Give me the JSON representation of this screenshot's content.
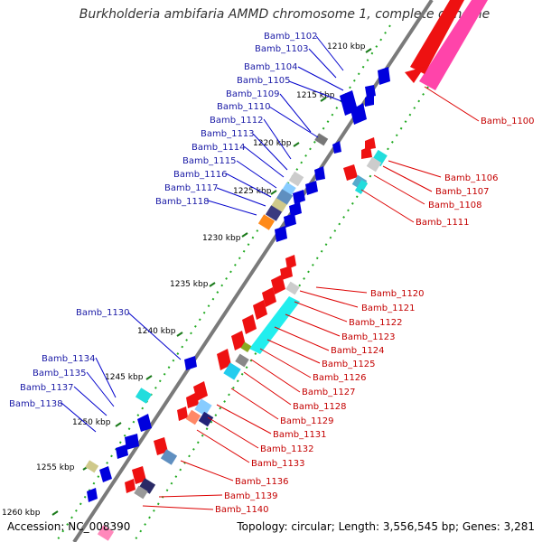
{
  "title": "Burkholderia ambifaria AMMD chromosome 1, complete genome",
  "footer": {
    "accession": "Accession: NC_008390",
    "topology": "Topology: circular; Length: 3,556,545 bp; Genes: 3,281"
  },
  "kbp_labels": [
    "1210 kbp",
    "1215 kbp",
    "1220 kbp",
    "1225 kbp",
    "1230 kbp",
    "1235 kbp",
    "1240 kbp",
    "1245 kbp",
    "1250 kbp",
    "1255 kbp",
    "1260 kbp"
  ],
  "left_labels": [
    "Bamb_1102",
    "Bamb_1103",
    "Bamb_1104",
    "Bamb_1105",
    "Bamb_1109",
    "Bamb_1110",
    "Bamb_1112",
    "Bamb_1113",
    "Bamb_1114",
    "Bamb_1115",
    "Bamb_1116",
    "Bamb_1117",
    "Bamb_1118",
    "Bamb_1130",
    "Bamb_1134",
    "Bamb_1135",
    "Bamb_1137",
    "Bamb_1138"
  ],
  "right_labels": [
    "Bamb_1100",
    "Bamb_1106",
    "Bamb_1107",
    "Bamb_1108",
    "Bamb_1111",
    "Bamb_1120",
    "Bamb_1121",
    "Bamb_1122",
    "Bamb_1123",
    "Bamb_1124",
    "Bamb_1125",
    "Bamb_1126",
    "Bamb_1127",
    "Bamb_1128",
    "Bamb_1129",
    "Bamb_1131",
    "Bamb_1132",
    "Bamb_1133",
    "Bamb_1136",
    "Bamb_1139",
    "Bamb_1140"
  ],
  "colors": {
    "forward_strand": "#0000dd",
    "reverse_strand": "#ee1111",
    "backbone": "#777777",
    "tick_dots": "#22aa22",
    "left_label": "#1a1aa6",
    "right_label": "#c40000"
  }
}
